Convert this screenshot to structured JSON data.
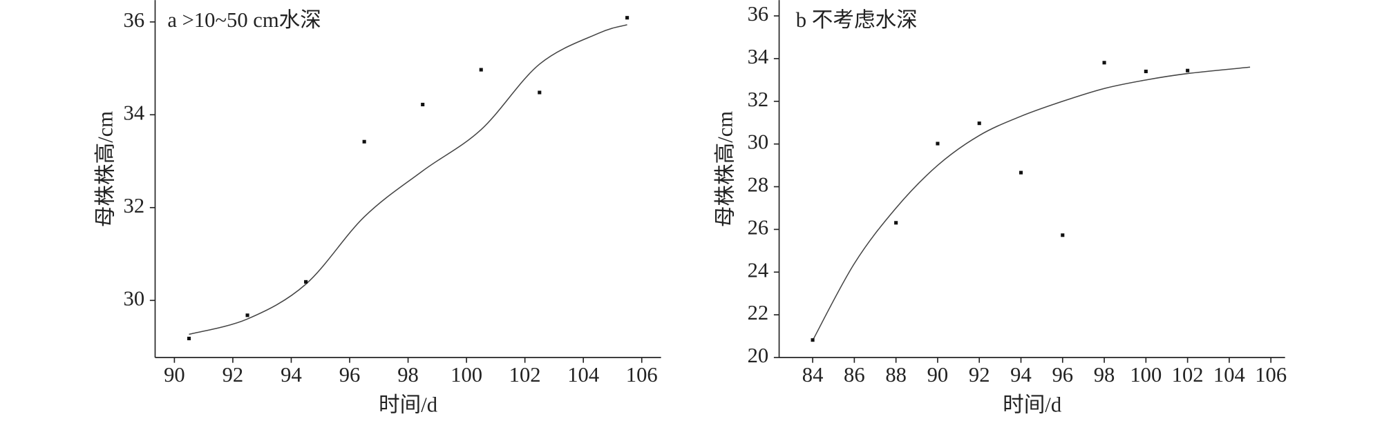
{
  "chart_data": [
    {
      "type": "scatter",
      "title": "a >10~50 cm水深",
      "xlabel": "时间/d",
      "ylabel": "母株株高/cm",
      "x": [
        90.5,
        92.5,
        94.5,
        96.5,
        98.5,
        100.5,
        102.5,
        105.5
      ],
      "y": [
        29.18,
        29.68,
        30.4,
        33.42,
        34.22,
        34.97,
        34.48,
        36.09
      ],
      "fit": {
        "x": [
          90.5,
          92.5,
          94.5,
          96.5,
          98.5,
          100.5,
          102.5,
          104.5,
          105.5
        ],
        "y": [
          29.27,
          29.6,
          30.35,
          31.8,
          32.79,
          33.68,
          35.09,
          35.75,
          35.94
        ]
      },
      "xlim": [
        89.34,
        106.66
      ],
      "ylim": [
        28.77,
        36.47
      ],
      "xticks": [
        90,
        92,
        94,
        96,
        98,
        100,
        102,
        104,
        106
      ],
      "yticks": [
        30,
        32,
        34,
        36
      ]
    },
    {
      "type": "scatter",
      "title": "b 不考虑水深",
      "xlabel": "时间/d",
      "ylabel": "母株株高/cm",
      "x": [
        84,
        88,
        90,
        92,
        94,
        96,
        98,
        100,
        102
      ],
      "y": [
        20.82,
        26.31,
        30.02,
        30.97,
        28.66,
        25.73,
        33.81,
        33.4,
        33.44
      ],
      "fit": {
        "x": [
          84,
          86,
          88,
          90,
          92,
          94,
          96,
          98,
          100,
          102,
          105
        ],
        "y": [
          20.8,
          24.4,
          27.0,
          29.0,
          30.4,
          31.3,
          32.0,
          32.6,
          33.0,
          33.3,
          33.6
        ]
      },
      "xlim": [
        82.39,
        106.68
      ],
      "ylim": [
        20,
        36.74
      ],
      "xticks": [
        84,
        86,
        88,
        90,
        92,
        94,
        96,
        98,
        100,
        102,
        104,
        106
      ],
      "yticks": [
        20,
        22,
        24,
        26,
        28,
        30,
        32,
        34,
        36
      ]
    }
  ]
}
